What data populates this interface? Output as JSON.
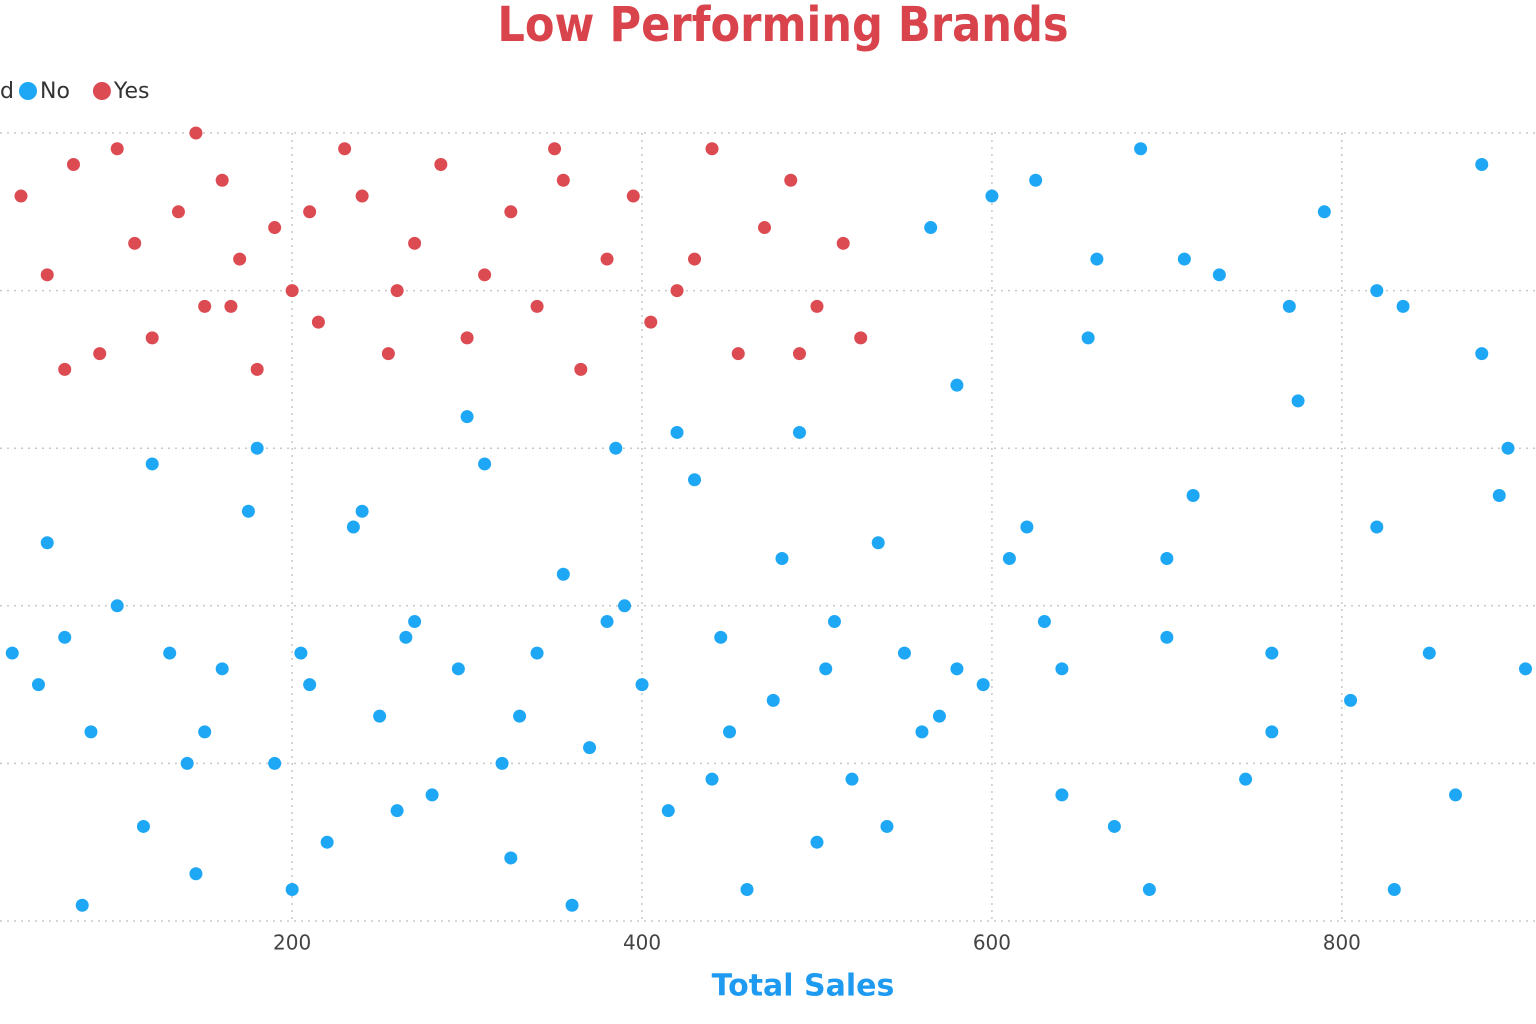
{
  "chart_data": {
    "type": "scatter",
    "title": "Low Performing Brands",
    "x_label": "Total Sales",
    "legend_title": "d",
    "xlim": [
      33,
      911
    ],
    "xticks": [
      200,
      400,
      600,
      800
    ],
    "ylim": [
      0,
      5
    ],
    "yticks": [
      0,
      1,
      2,
      3,
      4,
      5
    ],
    "grid": true,
    "series": [
      {
        "name": "No",
        "color": "#1ea7f5",
        "x": [
          40,
          55,
          70,
          85,
          100,
          115,
          130,
          145,
          160,
          175,
          190,
          205,
          220,
          235,
          250,
          265,
          280,
          295,
          310,
          325,
          340,
          355,
          370,
          385,
          400,
          415,
          430,
          445,
          460,
          475,
          490,
          505,
          520,
          535,
          550,
          565,
          580,
          595,
          610,
          625,
          640,
          655,
          670,
          685,
          700,
          715,
          730,
          745,
          760,
          775,
          790,
          805,
          820,
          835,
          850,
          865,
          880,
          895,
          905,
          600,
          60,
          120,
          180,
          240,
          300,
          360,
          420,
          480,
          540,
          660,
          710,
          770,
          830,
          890,
          640,
          700,
          760,
          820,
          880,
          580,
          150,
          210,
          270,
          330,
          390,
          450,
          510,
          570,
          630,
          690,
          80,
          140,
          200,
          260,
          320,
          380,
          440,
          500,
          560,
          620
        ],
        "values": [
          1.7,
          1.5,
          1.8,
          1.2,
          2.0,
          0.6,
          1.7,
          0.3,
          1.6,
          2.6,
          1.0,
          1.7,
          0.5,
          2.5,
          1.3,
          1.8,
          0.8,
          1.6,
          2.9,
          0.4,
          1.7,
          2.2,
          1.1,
          3.0,
          1.5,
          0.7,
          2.8,
          1.8,
          0.2,
          1.4,
          3.1,
          1.6,
          0.9,
          2.4,
          1.7,
          4.4,
          3.4,
          1.5,
          2.3,
          4.7,
          1.6,
          3.7,
          0.6,
          4.9,
          1.8,
          2.7,
          4.1,
          0.9,
          1.7,
          3.3,
          4.5,
          1.4,
          2.5,
          3.9,
          1.7,
          0.8,
          4.8,
          3.0,
          1.6,
          4.6,
          2.4,
          2.9,
          3.0,
          2.6,
          3.2,
          0.1,
          3.1,
          2.3,
          0.6,
          4.2,
          4.2,
          3.9,
          0.2,
          2.7,
          0.8,
          2.3,
          1.2,
          4.0,
          3.6,
          1.6,
          1.2,
          1.5,
          1.9,
          1.3,
          2.0,
          1.2,
          1.9,
          1.3,
          1.9,
          0.2,
          0.1,
          1.0,
          0.2,
          0.7,
          1.0,
          1.9,
          0.9,
          0.5,
          1.2,
          2.5
        ]
      },
      {
        "name": "Yes",
        "color": "#dc4a52",
        "x": [
          45,
          60,
          75,
          90,
          100,
          110,
          120,
          135,
          145,
          150,
          160,
          170,
          180,
          190,
          200,
          215,
          230,
          240,
          255,
          270,
          285,
          300,
          310,
          325,
          340,
          355,
          365,
          380,
          395,
          405,
          420,
          440,
          455,
          470,
          485,
          500,
          515,
          525,
          70,
          165,
          260,
          350,
          430,
          490,
          210
        ],
        "values": [
          4.6,
          4.1,
          4.8,
          3.6,
          4.9,
          4.3,
          3.7,
          4.5,
          5.0,
          3.9,
          4.7,
          4.2,
          3.5,
          4.4,
          4.0,
          3.8,
          4.9,
          4.6,
          3.6,
          4.3,
          4.8,
          3.7,
          4.1,
          4.5,
          3.9,
          4.7,
          3.5,
          4.2,
          4.6,
          3.8,
          4.0,
          4.9,
          3.6,
          4.4,
          4.7,
          3.9,
          4.3,
          3.7,
          3.5,
          3.9,
          4.0,
          4.9,
          4.2,
          3.6,
          4.5
        ]
      }
    ]
  }
}
